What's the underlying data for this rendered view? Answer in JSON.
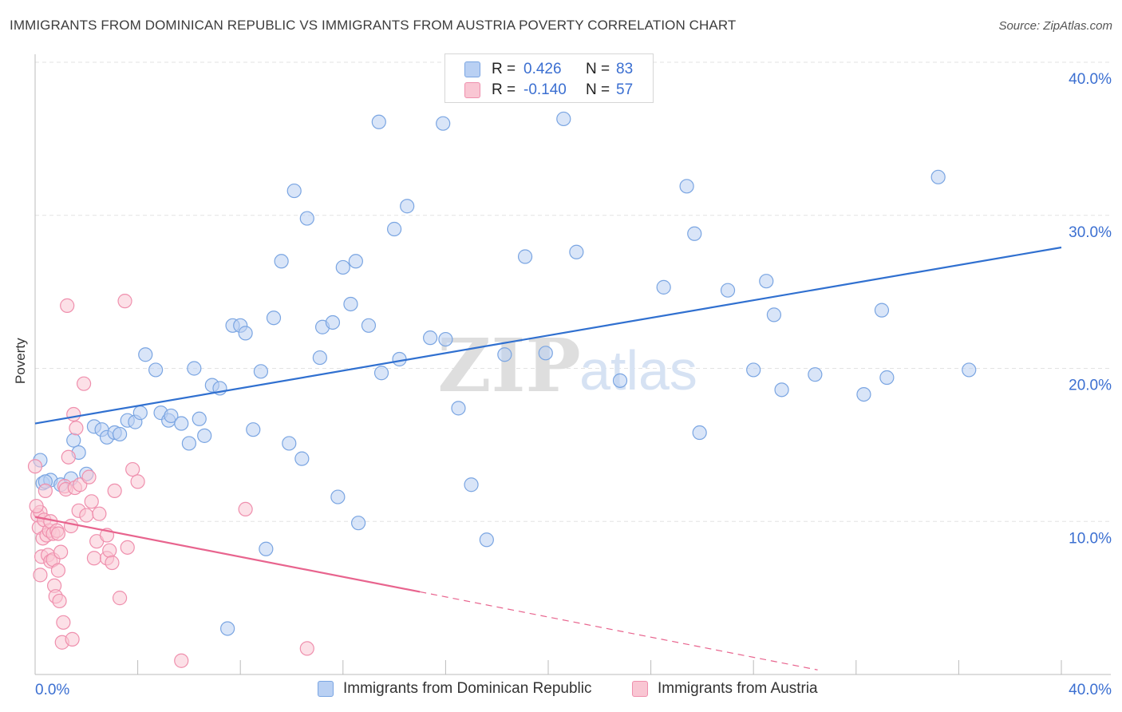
{
  "title": "IMMIGRANTS FROM DOMINICAN REPUBLIC VS IMMIGRANTS FROM AUSTRIA POVERTY CORRELATION CHART",
  "source": "Source: ZipAtlas.com",
  "watermark": {
    "zip": "ZIP",
    "atlas": "atlas"
  },
  "colors": {
    "blue_fill": "#b9d0f3",
    "blue_stroke": "#7aa5e2",
    "blue_line": "#3070d0",
    "pink_fill": "#f9c6d3",
    "pink_stroke": "#ef8fad",
    "pink_line": "#e8648e",
    "axis_text": "#3b6fd1",
    "grid": "#e3e3e3"
  },
  "legend_top": {
    "rows": [
      {
        "r_label": "R =",
        "r_value": "0.426",
        "n_label": "N =",
        "n_value": "83"
      },
      {
        "r_label": "R =",
        "r_value": "-0.140",
        "n_label": "N =",
        "n_value": "57"
      }
    ]
  },
  "legend_bottom": {
    "items": [
      "Immigrants from Dominican Republic",
      "Immigrants from Austria"
    ]
  },
  "chart_data": {
    "type": "scatter",
    "title": "IMMIGRANTS FROM DOMINICAN REPUBLIC VS IMMIGRANTS FROM AUSTRIA POVERTY CORRELATION CHART",
    "xlabel": "",
    "ylabel": "Poverty",
    "xlim": [
      0,
      40
    ],
    "ylim": [
      0,
      40
    ],
    "x_tick_labels": [
      "0.0%",
      "40.0%"
    ],
    "y_tick_labels": [
      "10.0%",
      "20.0%",
      "30.0%",
      "40.0%"
    ],
    "y_ticks": [
      10,
      20,
      30,
      40
    ],
    "grid": true,
    "legend_position": "top-center",
    "series": [
      {
        "name": "Immigrants from Dominican Republic",
        "color": "#b9d0f3",
        "points": [
          [
            0.3,
            12.5
          ],
          [
            0.6,
            12.7
          ],
          [
            1.0,
            12.4
          ],
          [
            1.4,
            12.8
          ],
          [
            1.5,
            15.3
          ],
          [
            1.7,
            14.5
          ],
          [
            2.0,
            13.1
          ],
          [
            2.3,
            16.2
          ],
          [
            2.6,
            16.0
          ],
          [
            2.8,
            15.5
          ],
          [
            3.1,
            15.8
          ],
          [
            3.3,
            15.7
          ],
          [
            3.6,
            16.6
          ],
          [
            3.9,
            16.5
          ],
          [
            4.1,
            17.1
          ],
          [
            4.3,
            20.9
          ],
          [
            4.7,
            19.9
          ],
          [
            4.9,
            17.1
          ],
          [
            5.2,
            16.6
          ],
          [
            5.3,
            16.9
          ],
          [
            5.7,
            16.4
          ],
          [
            6.0,
            15.1
          ],
          [
            6.2,
            20.0
          ],
          [
            6.4,
            16.7
          ],
          [
            6.6,
            15.6
          ],
          [
            6.9,
            18.9
          ],
          [
            7.2,
            18.7
          ],
          [
            7.7,
            22.8
          ],
          [
            8.0,
            22.8
          ],
          [
            8.2,
            22.3
          ],
          [
            8.5,
            16.0
          ],
          [
            8.8,
            19.8
          ],
          [
            9.0,
            8.2
          ],
          [
            9.3,
            23.3
          ],
          [
            9.6,
            27.0
          ],
          [
            9.9,
            15.1
          ],
          [
            10.1,
            31.6
          ],
          [
            10.4,
            14.1
          ],
          [
            10.6,
            29.8
          ],
          [
            11.1,
            20.7
          ],
          [
            11.2,
            22.7
          ],
          [
            11.6,
            23.0
          ],
          [
            11.8,
            11.6
          ],
          [
            12.0,
            26.6
          ],
          [
            12.3,
            24.2
          ],
          [
            12.5,
            27.0
          ],
          [
            12.6,
            9.9
          ],
          [
            13.0,
            22.8
          ],
          [
            13.5,
            19.7
          ],
          [
            13.4,
            36.1
          ],
          [
            14.0,
            29.1
          ],
          [
            14.2,
            20.6
          ],
          [
            14.5,
            30.6
          ],
          [
            15.4,
            22.0
          ],
          [
            16.0,
            21.9
          ],
          [
            15.9,
            36.0
          ],
          [
            16.5,
            17.4
          ],
          [
            17.0,
            12.4
          ],
          [
            17.6,
            8.8
          ],
          [
            18.3,
            20.9
          ],
          [
            19.1,
            27.3
          ],
          [
            19.9,
            21.0
          ],
          [
            20.6,
            36.3
          ],
          [
            21.1,
            27.6
          ],
          [
            22.8,
            19.2
          ],
          [
            24.5,
            25.3
          ],
          [
            25.4,
            31.9
          ],
          [
            25.7,
            28.8
          ],
          [
            25.9,
            15.8
          ],
          [
            27.0,
            25.1
          ],
          [
            28.0,
            19.9
          ],
          [
            28.5,
            25.7
          ],
          [
            28.8,
            23.5
          ],
          [
            29.1,
            18.6
          ],
          [
            30.4,
            19.6
          ],
          [
            32.3,
            18.3
          ],
          [
            33.0,
            23.8
          ],
          [
            33.2,
            19.4
          ],
          [
            35.2,
            32.5
          ],
          [
            36.4,
            19.9
          ],
          [
            7.5,
            3.0
          ],
          [
            0.2,
            14.0
          ],
          [
            0.4,
            12.6
          ]
        ]
      },
      {
        "name": "Immigrants from Austria",
        "color": "#f9c6d3",
        "points": [
          [
            0.0,
            13.6
          ],
          [
            0.1,
            10.4
          ],
          [
            0.15,
            9.6
          ],
          [
            0.2,
            10.6
          ],
          [
            0.25,
            7.7
          ],
          [
            0.3,
            8.9
          ],
          [
            0.35,
            10.1
          ],
          [
            0.4,
            12.0
          ],
          [
            0.45,
            9.1
          ],
          [
            0.5,
            7.8
          ],
          [
            0.55,
            9.4
          ],
          [
            0.6,
            10.0
          ],
          [
            0.6,
            7.4
          ],
          [
            0.7,
            9.2
          ],
          [
            0.7,
            7.5
          ],
          [
            0.75,
            5.8
          ],
          [
            0.8,
            5.1
          ],
          [
            0.85,
            9.4
          ],
          [
            0.9,
            9.2
          ],
          [
            0.9,
            6.8
          ],
          [
            0.95,
            4.8
          ],
          [
            1.0,
            8.0
          ],
          [
            1.05,
            2.1
          ],
          [
            1.1,
            3.4
          ],
          [
            1.15,
            12.3
          ],
          [
            1.2,
            12.1
          ],
          [
            1.25,
            24.1
          ],
          [
            1.3,
            14.2
          ],
          [
            1.4,
            9.7
          ],
          [
            1.45,
            2.3
          ],
          [
            1.5,
            17.0
          ],
          [
            1.55,
            12.2
          ],
          [
            1.6,
            16.1
          ],
          [
            1.7,
            10.7
          ],
          [
            1.75,
            12.4
          ],
          [
            1.9,
            19.0
          ],
          [
            2.0,
            10.4
          ],
          [
            2.1,
            12.9
          ],
          [
            2.2,
            11.3
          ],
          [
            2.3,
            7.6
          ],
          [
            2.4,
            8.7
          ],
          [
            2.5,
            10.5
          ],
          [
            2.8,
            9.1
          ],
          [
            2.8,
            7.6
          ],
          [
            2.9,
            8.1
          ],
          [
            3.0,
            7.3
          ],
          [
            3.1,
            12.0
          ],
          [
            3.3,
            5.0
          ],
          [
            3.5,
            24.4
          ],
          [
            3.6,
            8.3
          ],
          [
            3.8,
            13.4
          ],
          [
            4.0,
            12.6
          ],
          [
            5.7,
            0.9
          ],
          [
            8.2,
            10.8
          ],
          [
            10.6,
            1.7
          ],
          [
            0.05,
            11.0
          ],
          [
            0.2,
            6.5
          ]
        ]
      }
    ],
    "trend_lines": [
      {
        "series": "Immigrants from Dominican Republic",
        "x": [
          0,
          40
        ],
        "y": [
          16.4,
          27.9
        ],
        "style": "solid"
      },
      {
        "series": "Immigrants from Austria",
        "x": [
          0,
          15
        ],
        "y": [
          10.3,
          5.4
        ],
        "style": "solid"
      },
      {
        "series": "Immigrants from Austria",
        "x": [
          15,
          30.5
        ],
        "y": [
          5.4,
          0.3
        ],
        "style": "dashed"
      }
    ]
  }
}
